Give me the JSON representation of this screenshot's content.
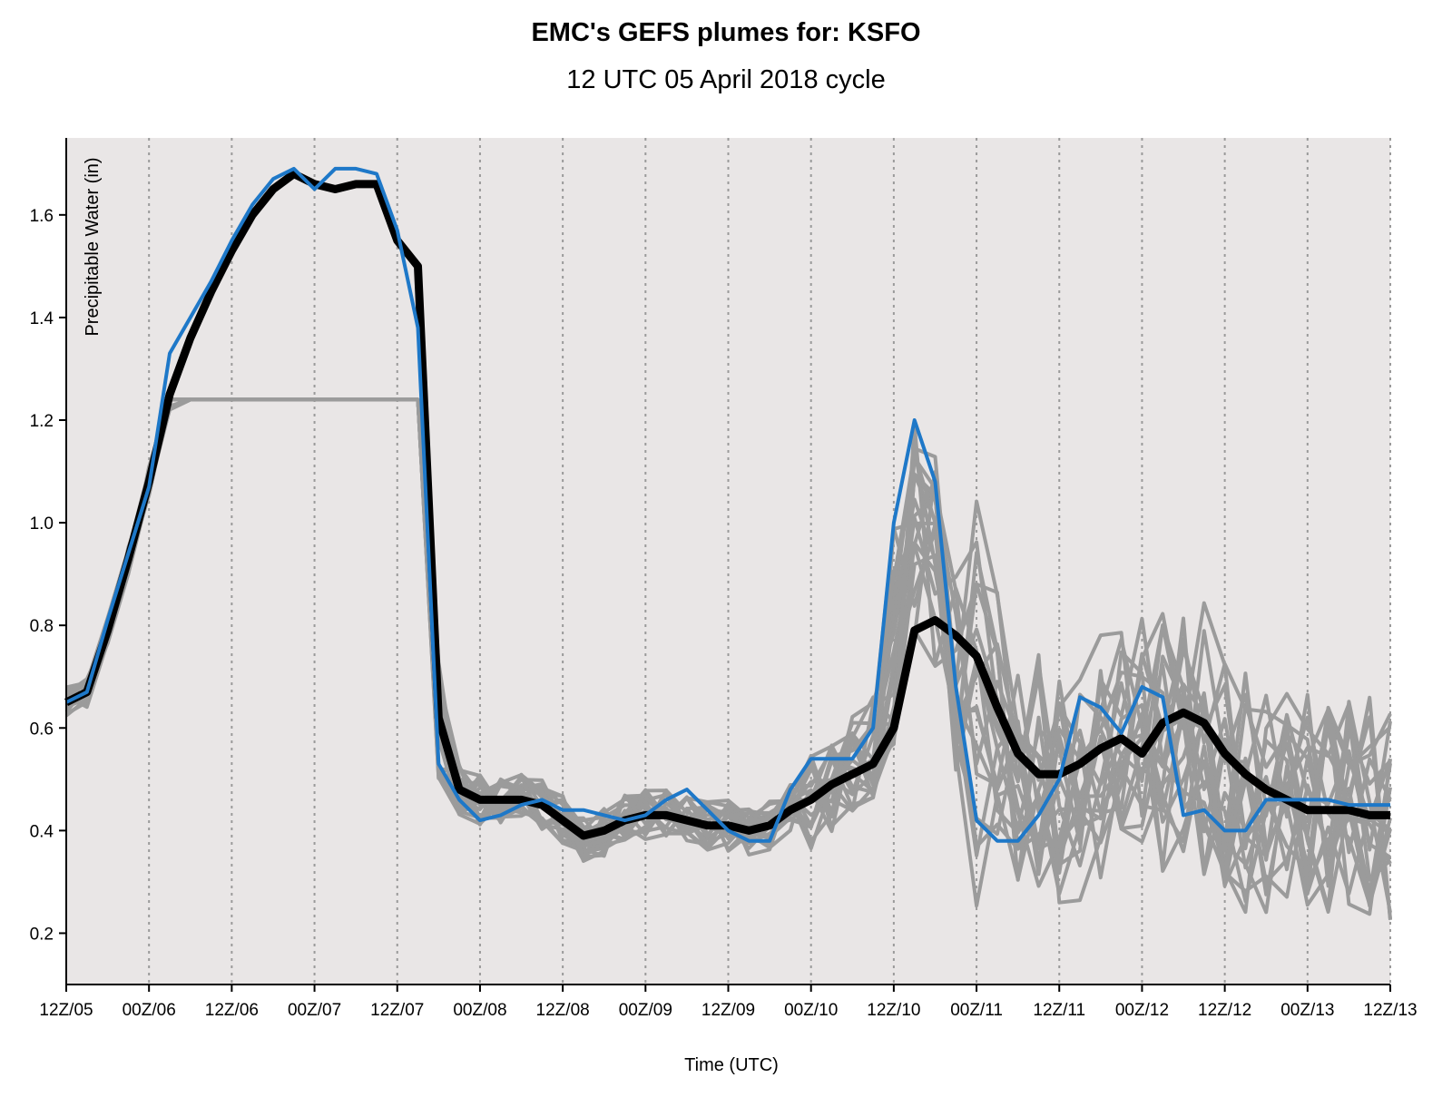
{
  "chart_data": {
    "type": "line",
    "title": "EMC's GEFS plumes for: KSFO",
    "subtitle": "12 UTC 05 April 2018 cycle",
    "xlabel": "Time (UTC)",
    "ylabel": "Precipitable Water (in)",
    "x_ticks": [
      "12Z/05",
      "00Z/06",
      "12Z/06",
      "00Z/07",
      "12Z/07",
      "00Z/08",
      "12Z/08",
      "00Z/09",
      "12Z/09",
      "00Z/10",
      "12Z/10",
      "00Z/11",
      "12Z/11",
      "00Z/12",
      "12Z/12",
      "00Z/13",
      "12Z/13"
    ],
    "x_tick_hours": [
      0,
      12,
      24,
      36,
      48,
      60,
      72,
      84,
      96,
      108,
      120,
      132,
      144,
      156,
      168,
      180,
      192
    ],
    "y_ticks": [
      0.2,
      0.4,
      0.6,
      0.8,
      1.0,
      1.2,
      1.4,
      1.6
    ],
    "y_tick_labels": [
      "0.2",
      "0.4",
      "0.6",
      "0.8",
      "1.0",
      "1.2",
      "1.4",
      "1.6"
    ],
    "xlim_hours": [
      0,
      192
    ],
    "ylim": [
      0.1,
      1.75
    ],
    "grid": "vertical dotted lines at x ticks",
    "colors": {
      "background": "#e9e6e6",
      "members": "#9b9b9b",
      "mean": "#000000",
      "control": "#1e78c8",
      "grid": "#9a9a9a"
    },
    "x_hours": [
      0,
      3,
      6,
      9,
      12,
      15,
      18,
      21,
      24,
      27,
      30,
      33,
      36,
      39,
      42,
      45,
      48,
      51,
      54,
      57,
      60,
      63,
      66,
      69,
      72,
      75,
      78,
      81,
      84,
      87,
      90,
      93,
      96,
      99,
      102,
      105,
      108,
      111,
      114,
      117,
      120,
      123,
      126,
      129,
      132,
      135,
      138,
      141,
      144,
      147,
      150,
      153,
      156,
      159,
      162,
      165,
      168,
      171,
      174,
      177,
      180,
      183,
      186,
      189,
      192
    ],
    "series": [
      {
        "role": "ensemble-mean",
        "values": [
          0.65,
          0.67,
          0.79,
          0.93,
          1.08,
          1.25,
          1.36,
          1.45,
          1.53,
          1.6,
          1.65,
          1.68,
          1.66,
          1.65,
          1.66,
          1.66,
          1.55,
          1.5,
          0.62,
          0.48,
          0.46,
          0.46,
          0.46,
          0.45,
          0.42,
          0.39,
          0.4,
          0.42,
          0.43,
          0.43,
          0.42,
          0.41,
          0.41,
          0.4,
          0.41,
          0.44,
          0.46,
          0.49,
          0.51,
          0.53,
          0.6,
          0.79,
          0.81,
          0.78,
          0.74,
          0.64,
          0.55,
          0.51,
          0.51,
          0.53,
          0.56,
          0.58,
          0.55,
          0.61,
          0.63,
          0.61,
          0.55,
          0.51,
          0.48,
          0.46,
          0.44,
          0.44,
          0.44,
          0.43,
          0.43
        ]
      },
      {
        "role": "control",
        "values": [
          0.65,
          0.67,
          0.81,
          0.94,
          1.07,
          1.33,
          1.4,
          1.47,
          1.55,
          1.62,
          1.67,
          1.69,
          1.65,
          1.69,
          1.69,
          1.68,
          1.57,
          1.38,
          0.53,
          0.46,
          0.42,
          0.43,
          0.45,
          0.46,
          0.44,
          0.44,
          0.43,
          0.42,
          0.43,
          0.46,
          0.48,
          0.44,
          0.4,
          0.38,
          0.38,
          0.48,
          0.54,
          0.54,
          0.54,
          0.6,
          1.0,
          1.2,
          1.08,
          0.68,
          0.42,
          0.38,
          0.38,
          0.43,
          0.5,
          0.66,
          0.64,
          0.59,
          0.68,
          0.66,
          0.43,
          0.44,
          0.4,
          0.4,
          0.46,
          0.46,
          0.46,
          0.46,
          0.45,
          0.45,
          0.45
        ]
      }
    ],
    "member_count": 20,
    "member_spread": "grey ensemble member plumes; tightly clustered around the mean until 00Z/10, then widely spread between ~0.15 and ~1.25 in"
  }
}
